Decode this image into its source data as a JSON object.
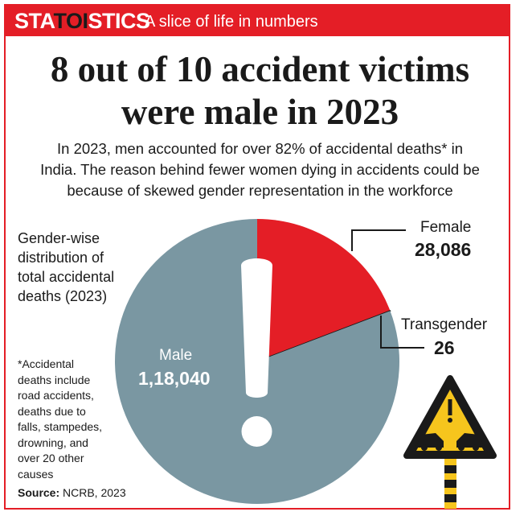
{
  "header": {
    "brand_pre": "STA",
    "brand_mid": "TOI",
    "brand_post": "STICS",
    "tagline": "A slice of life in numbers"
  },
  "headline": {
    "line1": "8 out of 10 accident victims",
    "line2": "were male in 2023"
  },
  "intro": {
    "line1": "In 2023, men accounted for over 82% of accidental deaths* in",
    "line2": "India. The reason behind fewer women dying in accidents could be",
    "line3": "because of skewed gender representation in the workforce"
  },
  "chart_label": {
    "line1": "Gender-wise",
    "line2": "distribution of",
    "line3": "total accidental",
    "line4": "deaths (2023)"
  },
  "footnote": {
    "line1": "*Accidental",
    "line2": "deaths include",
    "line3": "road accidents,",
    "line4": "deaths due to",
    "line5": "falls, stampedes,",
    "line6": "drowning, and",
    "line7": "over 20 other",
    "line8": "causes"
  },
  "source": {
    "label": "Source:",
    "text": "NCRB, 2023"
  },
  "colors": {
    "brand_red": "#e41e26",
    "male": "#7a97a2",
    "female": "#e41e26",
    "transgender": "#1a1a1a",
    "sign_yellow": "#f6c51d"
  },
  "icons": [
    "exclamation-icon",
    "warning-sign-icon"
  ],
  "chart_data": {
    "type": "pie",
    "categories": [
      "Female",
      "Transgender",
      "Male"
    ],
    "values": [
      28086,
      26,
      118040
    ],
    "value_labels": [
      "28,086",
      "26",
      "1,18,040"
    ]
  }
}
